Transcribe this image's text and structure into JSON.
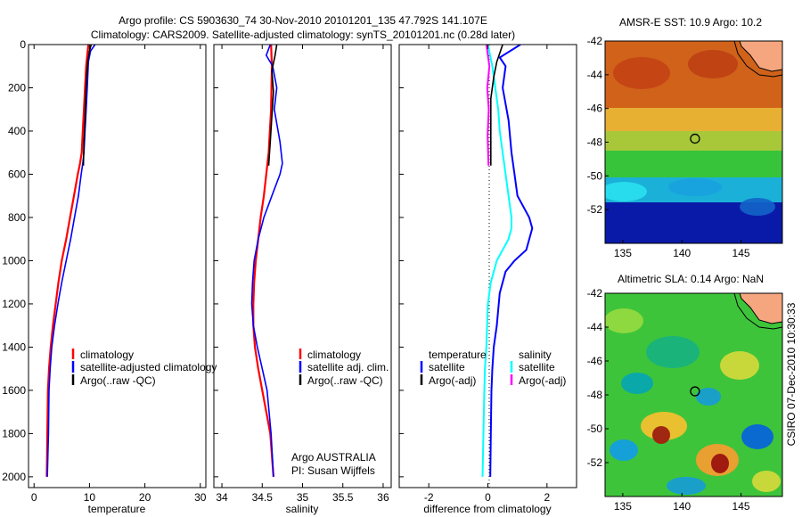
{
  "header": {
    "title_line1": "Argo profile: CS 5903630_74 30-Nov-2010 20101201_135 47.792S 141.107E",
    "title_line2": "Climatology: CARS2009. Satellite-adjusted climatology: synTS_20101201.nc (0.28d later)"
  },
  "colors": {
    "climatology": "#ff0000",
    "satellite": "#0000ff",
    "argo": "#000000",
    "satellite_salinity": "#00ffff",
    "argo_salinity": "#ff00ff"
  },
  "credit": "CSIRO 07-Dec-2010 10:30:33",
  "chart_data": [
    {
      "id": "temperature",
      "type": "line",
      "xlabel": "temperature",
      "xlim": [
        -1,
        31
      ],
      "ylim": [
        0,
        2050
      ],
      "y_inverted": true,
      "xticks": [
        0,
        10,
        20,
        30
      ],
      "yticks": [
        0,
        200,
        400,
        600,
        800,
        1000,
        1200,
        1400,
        1600,
        1800,
        2000
      ],
      "legend": {
        "placement": "lower-middle",
        "entries": [
          "climatology",
          "satellite-adjusted climatology",
          "Argo(..raw -QC)"
        ]
      },
      "series": [
        {
          "name": "climatology",
          "color": "#ff0000",
          "x": [
            9.8,
            9.6,
            9.4,
            9.2,
            9.0,
            8.8,
            8.6,
            8.3,
            7.9,
            7.2,
            6.5,
            5.8,
            5.0,
            4.4,
            3.9,
            3.4,
            3.0,
            2.7,
            2.5,
            2.4,
            2.3
          ],
          "y": [
            0,
            50,
            100,
            200,
            300,
            400,
            500,
            550,
            600,
            700,
            800,
            900,
            1000,
            1100,
            1200,
            1300,
            1400,
            1500,
            1600,
            1800,
            2000
          ]
        },
        {
          "name": "satellite-adjusted climatology",
          "color": "#0000ff",
          "x": [
            11.0,
            10.2,
            9.8,
            9.6,
            9.4,
            9.2,
            9.0,
            8.8,
            8.5,
            8.0,
            7.3,
            6.6,
            5.8,
            5.0,
            4.3,
            3.7,
            3.2,
            2.9,
            2.7,
            2.6,
            2.4
          ],
          "y": [
            0,
            30,
            80,
            200,
            300,
            400,
            500,
            550,
            600,
            700,
            800,
            900,
            1000,
            1100,
            1200,
            1300,
            1400,
            1500,
            1600,
            1800,
            2000
          ]
        },
        {
          "name": "Argo(..raw -QC)",
          "color": "#000000",
          "x": [
            10.3,
            10.0,
            9.7,
            9.5,
            9.3,
            9.2,
            9.0,
            8.9
          ],
          "y": [
            0,
            30,
            80,
            150,
            250,
            350,
            450,
            560
          ]
        }
      ]
    },
    {
      "id": "salinity",
      "type": "line",
      "xlabel": "salinity",
      "xlim": [
        33.9,
        36.1
      ],
      "ylim": [
        0,
        2050
      ],
      "y_inverted": true,
      "xticks": [
        34,
        34.5,
        35,
        35.5,
        36
      ],
      "legend": {
        "placement": "lower-right",
        "entries": [
          "climatology",
          "satellite adj. clim.",
          "Argo(..raw -QC)"
        ]
      },
      "annotations": [
        "Argo AUSTRALIA",
        "PI: Susan Wijffels"
      ],
      "series": [
        {
          "name": "climatology",
          "color": "#ff0000",
          "x": [
            34.61,
            34.62,
            34.61,
            34.58,
            34.55,
            34.52,
            34.48,
            34.45,
            34.42,
            34.4,
            34.39,
            34.39,
            34.41,
            34.45,
            34.5,
            34.55,
            34.6,
            34.64
          ],
          "y": [
            0,
            100,
            300,
            500,
            600,
            700,
            800,
            900,
            1000,
            1100,
            1200,
            1300,
            1400,
            1500,
            1600,
            1700,
            1800,
            2000
          ]
        },
        {
          "name": "satellite adj. clim.",
          "color": "#0000ff",
          "x": [
            34.6,
            34.55,
            34.63,
            34.68,
            34.65,
            34.72,
            34.75,
            34.72,
            34.62,
            34.52,
            34.45,
            34.4,
            34.38,
            34.37,
            34.39,
            34.44,
            34.5,
            34.56,
            34.61,
            34.64
          ],
          "y": [
            0,
            50,
            100,
            200,
            300,
            450,
            550,
            600,
            700,
            800,
            900,
            1000,
            1100,
            1200,
            1300,
            1400,
            1500,
            1600,
            1800,
            2000
          ]
        },
        {
          "name": "Argo(..raw -QC)",
          "color": "#000000",
          "x": [
            34.68,
            34.66,
            34.62,
            34.64,
            34.62,
            34.6,
            34.58
          ],
          "y": [
            0,
            50,
            120,
            220,
            330,
            450,
            560
          ]
        }
      ]
    },
    {
      "id": "difference",
      "type": "line",
      "xlabel": "difference from climatology",
      "xlim": [
        -3,
        3
      ],
      "ylim": [
        0,
        2050
      ],
      "y_inverted": true,
      "xticks": [
        -2,
        0,
        2
      ],
      "legend": {
        "placement": "lower-middle",
        "columns": [
          {
            "heading": "temperature",
            "entries": [
              "satellite",
              "Argo(-adj)"
            ]
          },
          {
            "heading": "salinity",
            "entries": [
              "satellite",
              "Argo(-adj)"
            ]
          }
        ]
      },
      "series": [
        {
          "name": "temperature satellite",
          "color": "#0000ff",
          "x": [
            1.1,
            0.4,
            0.6,
            0.5,
            0.7,
            0.8,
            0.9,
            1.0,
            1.2,
            1.4,
            1.5,
            1.3,
            0.9,
            0.6,
            0.4,
            0.3,
            0.2,
            0.15,
            0.12,
            0.1,
            0.08
          ],
          "y": [
            0,
            60,
            100,
            200,
            350,
            500,
            600,
            700,
            750,
            800,
            850,
            950,
            1000,
            1050,
            1150,
            1300,
            1400,
            1500,
            1600,
            1800,
            2000
          ]
        },
        {
          "name": "temperature Argo(-adj)",
          "color": "#000000",
          "x": [
            0.5,
            0.3,
            0.2,
            0.1,
            0.1,
            0.1,
            0.1
          ],
          "y": [
            0,
            80,
            150,
            250,
            350,
            450,
            560
          ]
        },
        {
          "name": "salinity satellite",
          "color": "#00ffff",
          "x": [
            0.0,
            0.15,
            0.25,
            0.35,
            0.4,
            0.5,
            0.6,
            0.7,
            0.8,
            0.8,
            0.7,
            0.5,
            0.3,
            0.1,
            0.0,
            -0.05,
            -0.1,
            -0.12,
            -0.15,
            -0.18
          ],
          "y": [
            0,
            100,
            200,
            300,
            400,
            500,
            600,
            700,
            800,
            850,
            900,
            950,
            1000,
            1100,
            1200,
            1400,
            1500,
            1600,
            1800,
            2000
          ]
        },
        {
          "name": "salinity Argo(-adj)",
          "color": "#ff00ff",
          "x": [
            -0.05,
            0.05,
            -0.02,
            0.03,
            -0.01,
            0.02
          ],
          "y": [
            0,
            100,
            200,
            300,
            420,
            560
          ]
        }
      ]
    },
    {
      "id": "sst-map",
      "type": "heatmap",
      "title": "AMSR-E SST: 10.9 Argo: 10.2",
      "xlim": [
        133.5,
        148.5
      ],
      "ylim": [
        -54,
        -42
      ],
      "xticks": [
        135,
        140,
        145
      ],
      "yticks": [
        -42,
        -44,
        -46,
        -48,
        -50,
        -52
      ],
      "marker": {
        "lon": 141.107,
        "lat": -47.792
      }
    },
    {
      "id": "sla-map",
      "type": "heatmap",
      "title": "Altimetric SLA: 0.14 Argo: NaN",
      "xlim": [
        133.5,
        148.5
      ],
      "ylim": [
        -54,
        -42
      ],
      "xticks": [
        135,
        140,
        145
      ],
      "yticks": [
        -42,
        -44,
        -46,
        -48,
        -50,
        -52
      ],
      "marker": {
        "lon": 141.107,
        "lat": -47.792
      }
    }
  ]
}
